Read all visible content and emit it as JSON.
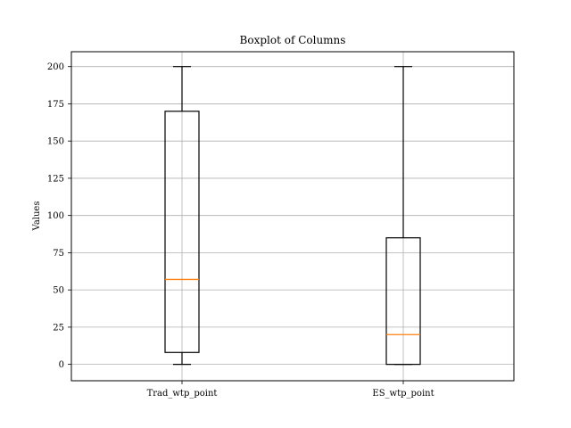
{
  "chart_data": {
    "type": "boxplot",
    "title": "Boxplot of Columns",
    "xlabel": "",
    "ylabel": "Values",
    "categories": [
      "Trad_wtp_point",
      "ES_wtp_point"
    ],
    "boxes": [
      {
        "category": "Trad_wtp_point",
        "whisker_low": 0,
        "q1": 8,
        "median": 57,
        "q3": 170,
        "whisker_high": 200
      },
      {
        "category": "ES_wtp_point",
        "whisker_low": 0,
        "q1": 0,
        "median": 20,
        "q3": 85,
        "whisker_high": 200
      }
    ],
    "ylim": [
      -11,
      210
    ],
    "yticks": [
      0,
      25,
      50,
      75,
      100,
      125,
      150,
      175,
      200
    ],
    "grid": true,
    "legend": "none",
    "colors": {
      "box": "#000000",
      "median": "#ff7f0e",
      "grid": "#b0b0b0"
    }
  }
}
